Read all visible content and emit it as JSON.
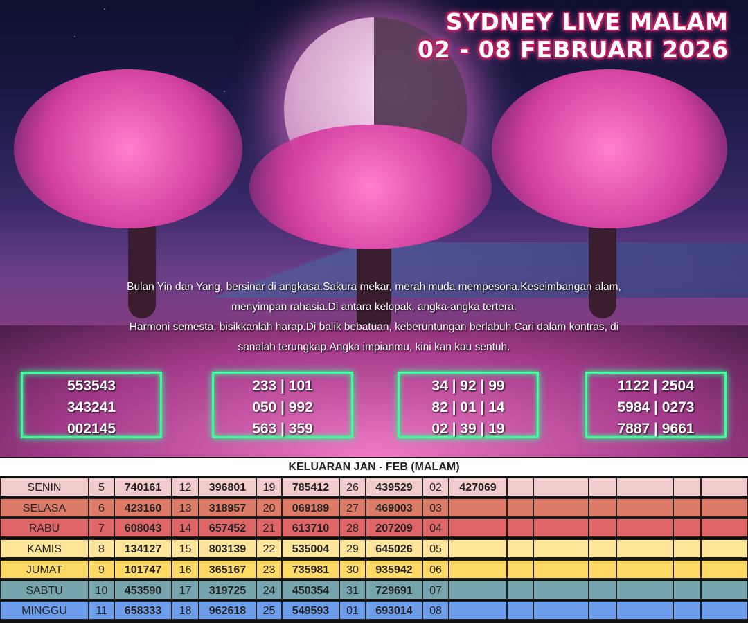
{
  "title": {
    "line1": "SYDNEY LIVE MALAM",
    "line2": "02 - 08 FEBRUARI 2026"
  },
  "poem": [
    "Bulan Yin dan Yang, bersinar di angkasa.Sakura mekar, merah muda mempesona.Keseimbangan alam,",
    "menyimpan rahasia.Di antara kelopak, angka-angka tertera.",
    "Harmoni semesta, bisikkanlah harap.Di balik bebatuan, keberuntungan berlabuh.Cari dalam kontras, di",
    "sanalah terungkap.Angka impianmu, kini kan kau sentuh."
  ],
  "boxes": [
    [
      "553543",
      "343241",
      "002145"
    ],
    [
      "233 | 101",
      "050 | 992",
      "563 | 359"
    ],
    [
      "34 | 92 | 99",
      "82 | 01 | 14",
      "02 | 39 | 19"
    ],
    [
      "1122 | 2504",
      "5984 | 0273",
      "7887 | 9661"
    ]
  ],
  "table": {
    "title": "KELUARAN JAN - FEB (MALAM)",
    "rows": [
      {
        "day": "SENIN",
        "color": "#f2cbcd",
        "cells": [
          "5",
          "740161",
          "12",
          "396801",
          "19",
          "785412",
          "26",
          "439529",
          "02",
          "427069"
        ]
      },
      {
        "day": "SELASA",
        "color": "#dc7b68",
        "cells": [
          "6",
          "423160",
          "13",
          "318957",
          "20",
          "069189",
          "27",
          "469003",
          "03",
          ""
        ]
      },
      {
        "day": "RABU",
        "color": "#e06566",
        "cells": [
          "7",
          "608043",
          "14",
          "657452",
          "21",
          "613710",
          "28",
          "207209",
          "04",
          ""
        ]
      },
      {
        "day": "KAMIS",
        "color": "#fee59a",
        "cells": [
          "8",
          "134127",
          "15",
          "803139",
          "22",
          "535004",
          "29",
          "645026",
          "05",
          ""
        ]
      },
      {
        "day": "JUMAT",
        "color": "#ffd966",
        "cells": [
          "9",
          "101747",
          "16",
          "365167",
          "23",
          "735981",
          "30",
          "935942",
          "06",
          ""
        ]
      },
      {
        "day": "SABTU",
        "color": "#76a5af",
        "cells": [
          "10",
          "453590",
          "17",
          "319725",
          "24",
          "450354",
          "31",
          "729691",
          "07",
          ""
        ]
      },
      {
        "day": "MINGGU",
        "color": "#6d9eeb",
        "cells": [
          "11",
          "658333",
          "18",
          "962618",
          "25",
          "549593",
          "01",
          "693014",
          "08",
          ""
        ]
      }
    ]
  }
}
